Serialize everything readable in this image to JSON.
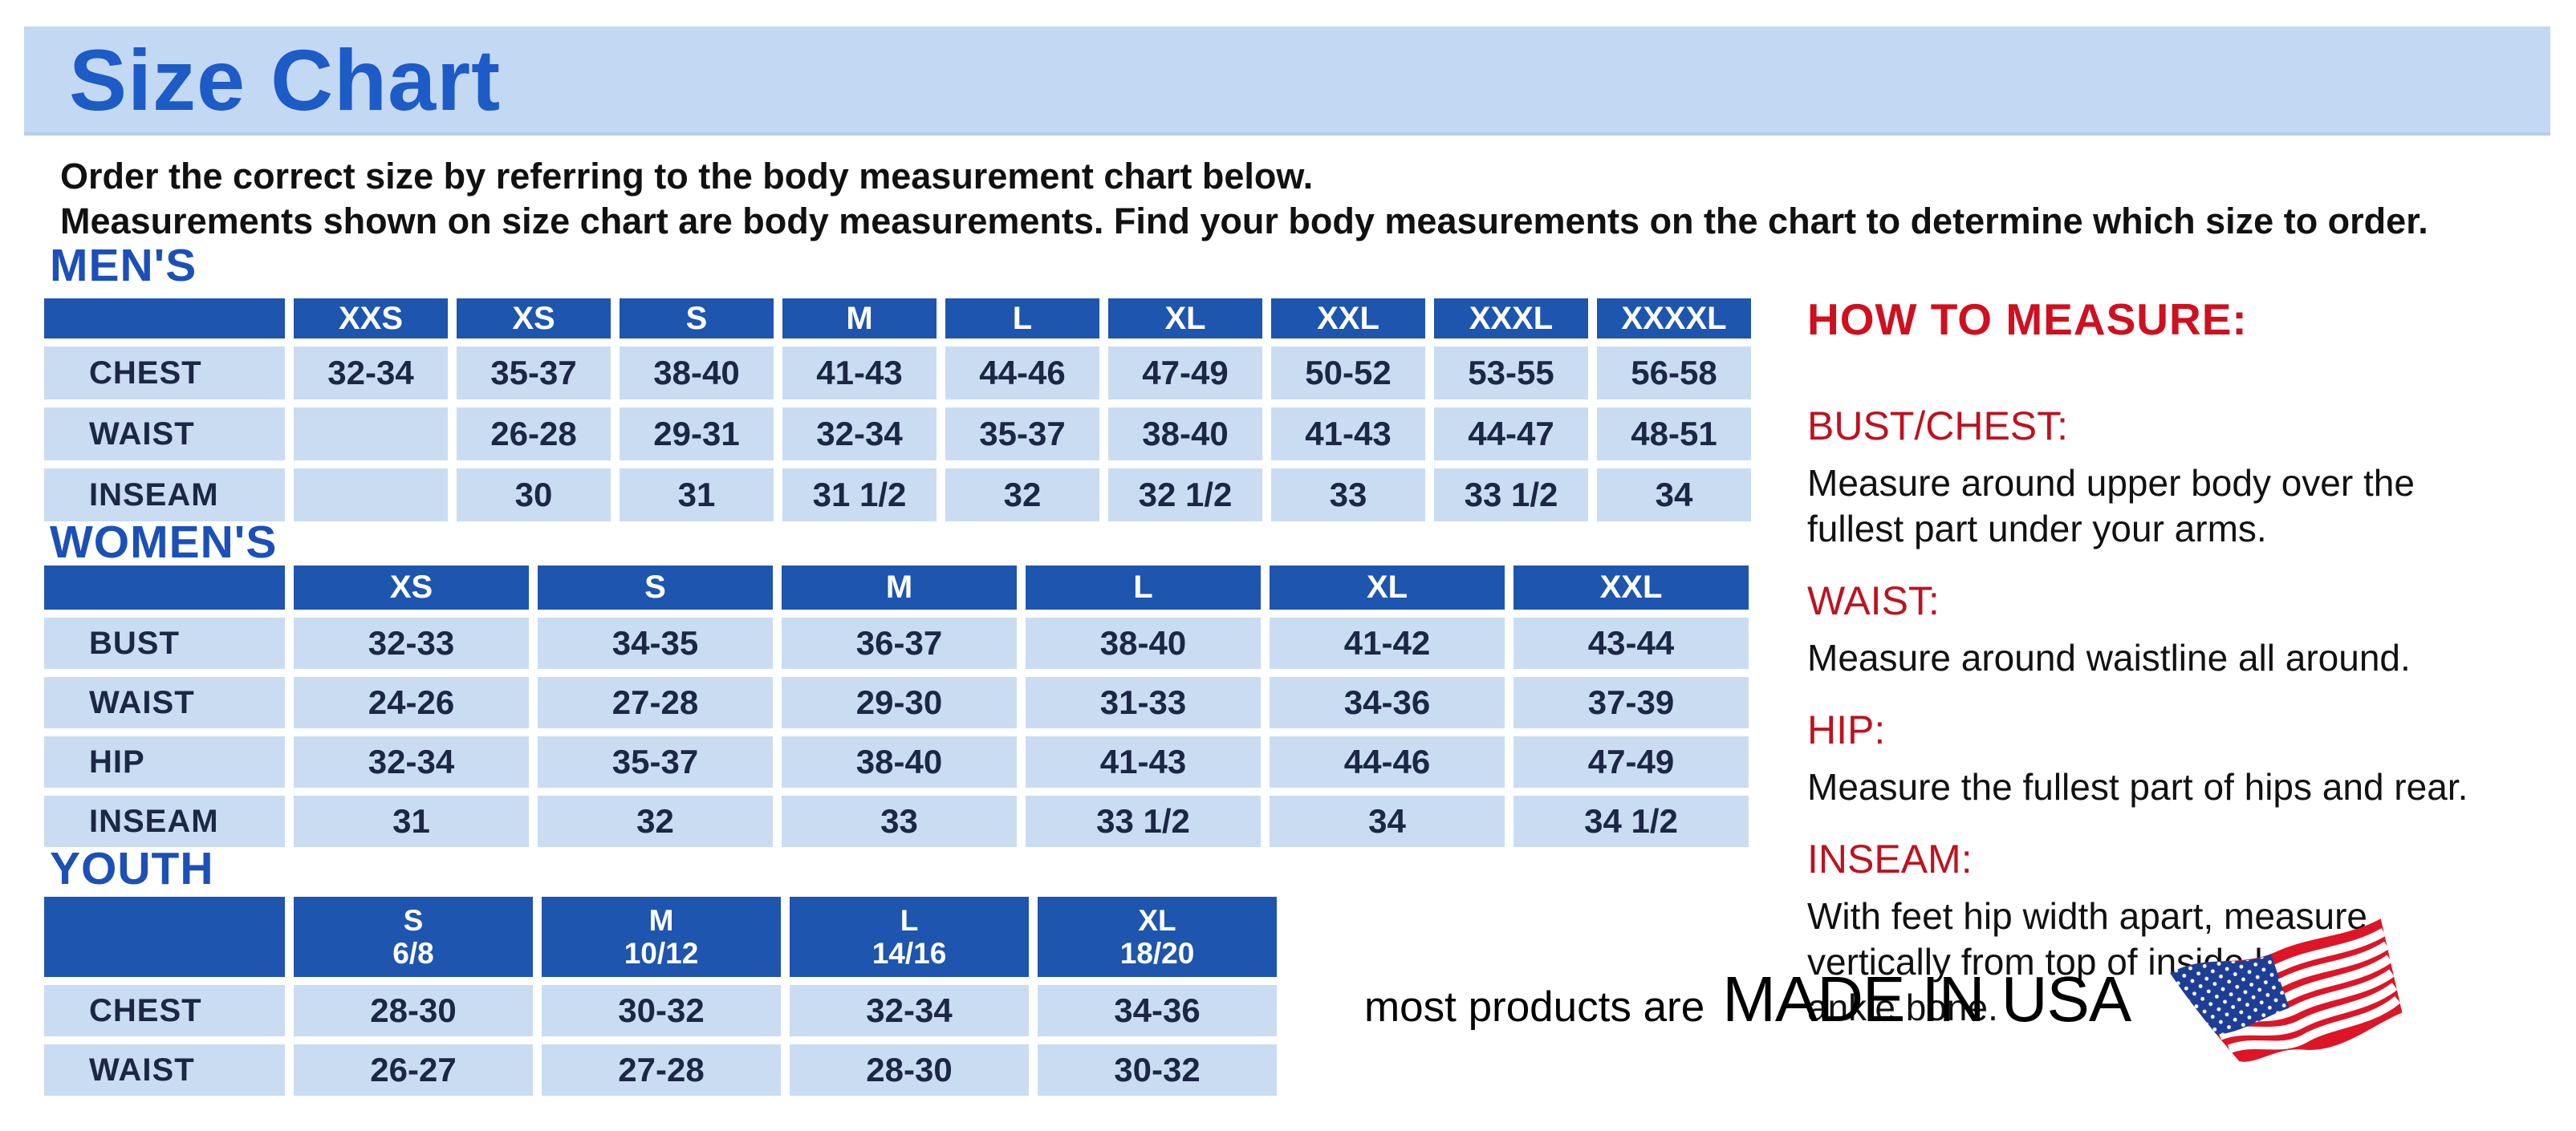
{
  "banner": {
    "title": "Size Chart"
  },
  "intro": {
    "line1": "Order the correct size by referring to the body measurement chart below.",
    "line2": "Measurements shown on size chart are body measurements.  Find your body measurements on the chart to determine which size to order."
  },
  "tables": {
    "men": {
      "title": "MEN'S",
      "columns": [
        "XXS",
        "XS",
        "S",
        "M",
        "L",
        "XL",
        "XXL",
        "XXXL",
        "XXXXL"
      ],
      "rows": [
        {
          "label": "CHEST",
          "values": [
            "32-34",
            "35-37",
            "38-40",
            "41-43",
            "44-46",
            "47-49",
            "50-52",
            "53-55",
            "56-58"
          ]
        },
        {
          "label": "WAIST",
          "values": [
            "",
            "26-28",
            "29-31",
            "32-34",
            "35-37",
            "38-40",
            "41-43",
            "44-47",
            "48-51"
          ]
        },
        {
          "label": "INSEAM",
          "values": [
            "",
            "30",
            "31",
            "31 1/2",
            "32",
            "32 1/2",
            "33",
            "33 1/2",
            "34"
          ]
        }
      ]
    },
    "women": {
      "title": "WOMEN'S",
      "columns": [
        "XS",
        "S",
        "M",
        "L",
        "XL",
        "XXL"
      ],
      "rows": [
        {
          "label": "BUST",
          "values": [
            "32-33",
            "34-35",
            "36-37",
            "38-40",
            "41-42",
            "43-44"
          ]
        },
        {
          "label": "WAIST",
          "values": [
            "24-26",
            "27-28",
            "29-30",
            "31-33",
            "34-36",
            "37-39"
          ]
        },
        {
          "label": "HIP",
          "values": [
            "32-34",
            "35-37",
            "38-40",
            "41-43",
            "44-46",
            "47-49"
          ]
        },
        {
          "label": "INSEAM",
          "values": [
            "31",
            "32",
            "33",
            "33 1/2",
            "34",
            "34 1/2"
          ]
        }
      ]
    },
    "youth": {
      "title": "YOUTH",
      "columns": [
        {
          "size": "S",
          "range": "6/8"
        },
        {
          "size": "M",
          "range": "10/12"
        },
        {
          "size": "L",
          "range": "14/16"
        },
        {
          "size": "XL",
          "range": "18/20"
        }
      ],
      "rows": [
        {
          "label": "CHEST",
          "values": [
            "28-30",
            "30-32",
            "32-34",
            "34-36"
          ]
        },
        {
          "label": "WAIST",
          "values": [
            "26-27",
            "27-28",
            "28-30",
            "30-32"
          ]
        }
      ]
    }
  },
  "how_to_measure": {
    "title": "HOW TO MEASURE:",
    "items": [
      {
        "label": "BUST/CHEST:",
        "text": "Measure around upper body over the\nfullest part under your arms."
      },
      {
        "label": "WAIST:",
        "text": "Measure around waistline all around."
      },
      {
        "label": "HIP:",
        "text": "Measure the fullest part of hips and rear."
      },
      {
        "label": "INSEAM:",
        "text": "With feet hip width apart, measure\nvertically from top of inside leg to\nankle bone."
      }
    ]
  },
  "footer": {
    "prefix": "most products are",
    "made_in": "MADE IN USA",
    "flag_icon": "usa-flag-icon"
  },
  "colors": {
    "banner_bg": "#C3D8F2",
    "title_blue": "#1D5BC6",
    "section_blue": "#1B50B8",
    "header_cell_bg": "#1E55AE",
    "cell_bg": "#C9DCF2",
    "cell_text": "#1B2744",
    "red_title": "#CF101F",
    "red_label": "#BE1220"
  }
}
